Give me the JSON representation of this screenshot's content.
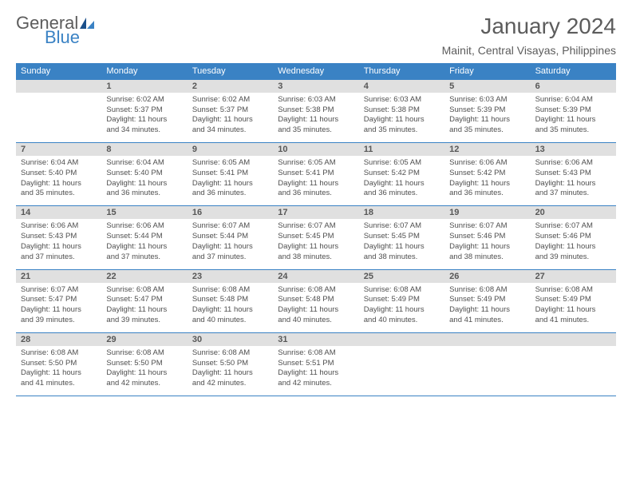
{
  "logo": {
    "word1": "General",
    "word2": "Blue"
  },
  "title": "January 2024",
  "location": "Mainit, Central Visayas, Philippines",
  "day_names": [
    "Sunday",
    "Monday",
    "Tuesday",
    "Wednesday",
    "Thursday",
    "Friday",
    "Saturday"
  ],
  "colors": {
    "accent": "#3a82c4",
    "date_bg": "#e0e0e0",
    "text_dark": "#5c5c5c",
    "cell_text": "#4f4f4f",
    "header_text": "#ffffff",
    "background": "#ffffff"
  },
  "typography": {
    "title_fontsize": 28,
    "location_fontsize": 14,
    "dayheader_fontsize": 11,
    "daynum_fontsize": 11,
    "cell_fontsize": 9.5,
    "font_family": "Arial"
  },
  "layout": {
    "columns": 7,
    "rows": 5,
    "start_weekday_index": 1
  },
  "weeks": [
    [
      {
        "day": "",
        "sunrise": "",
        "sunset": "",
        "daylight1": "",
        "daylight2": ""
      },
      {
        "day": "1",
        "sunrise": "Sunrise: 6:02 AM",
        "sunset": "Sunset: 5:37 PM",
        "daylight1": "Daylight: 11 hours",
        "daylight2": "and 34 minutes."
      },
      {
        "day": "2",
        "sunrise": "Sunrise: 6:02 AM",
        "sunset": "Sunset: 5:37 PM",
        "daylight1": "Daylight: 11 hours",
        "daylight2": "and 34 minutes."
      },
      {
        "day": "3",
        "sunrise": "Sunrise: 6:03 AM",
        "sunset": "Sunset: 5:38 PM",
        "daylight1": "Daylight: 11 hours",
        "daylight2": "and 35 minutes."
      },
      {
        "day": "4",
        "sunrise": "Sunrise: 6:03 AM",
        "sunset": "Sunset: 5:38 PM",
        "daylight1": "Daylight: 11 hours",
        "daylight2": "and 35 minutes."
      },
      {
        "day": "5",
        "sunrise": "Sunrise: 6:03 AM",
        "sunset": "Sunset: 5:39 PM",
        "daylight1": "Daylight: 11 hours",
        "daylight2": "and 35 minutes."
      },
      {
        "day": "6",
        "sunrise": "Sunrise: 6:04 AM",
        "sunset": "Sunset: 5:39 PM",
        "daylight1": "Daylight: 11 hours",
        "daylight2": "and 35 minutes."
      }
    ],
    [
      {
        "day": "7",
        "sunrise": "Sunrise: 6:04 AM",
        "sunset": "Sunset: 5:40 PM",
        "daylight1": "Daylight: 11 hours",
        "daylight2": "and 35 minutes."
      },
      {
        "day": "8",
        "sunrise": "Sunrise: 6:04 AM",
        "sunset": "Sunset: 5:40 PM",
        "daylight1": "Daylight: 11 hours",
        "daylight2": "and 36 minutes."
      },
      {
        "day": "9",
        "sunrise": "Sunrise: 6:05 AM",
        "sunset": "Sunset: 5:41 PM",
        "daylight1": "Daylight: 11 hours",
        "daylight2": "and 36 minutes."
      },
      {
        "day": "10",
        "sunrise": "Sunrise: 6:05 AM",
        "sunset": "Sunset: 5:41 PM",
        "daylight1": "Daylight: 11 hours",
        "daylight2": "and 36 minutes."
      },
      {
        "day": "11",
        "sunrise": "Sunrise: 6:05 AM",
        "sunset": "Sunset: 5:42 PM",
        "daylight1": "Daylight: 11 hours",
        "daylight2": "and 36 minutes."
      },
      {
        "day": "12",
        "sunrise": "Sunrise: 6:06 AM",
        "sunset": "Sunset: 5:42 PM",
        "daylight1": "Daylight: 11 hours",
        "daylight2": "and 36 minutes."
      },
      {
        "day": "13",
        "sunrise": "Sunrise: 6:06 AM",
        "sunset": "Sunset: 5:43 PM",
        "daylight1": "Daylight: 11 hours",
        "daylight2": "and 37 minutes."
      }
    ],
    [
      {
        "day": "14",
        "sunrise": "Sunrise: 6:06 AM",
        "sunset": "Sunset: 5:43 PM",
        "daylight1": "Daylight: 11 hours",
        "daylight2": "and 37 minutes."
      },
      {
        "day": "15",
        "sunrise": "Sunrise: 6:06 AM",
        "sunset": "Sunset: 5:44 PM",
        "daylight1": "Daylight: 11 hours",
        "daylight2": "and 37 minutes."
      },
      {
        "day": "16",
        "sunrise": "Sunrise: 6:07 AM",
        "sunset": "Sunset: 5:44 PM",
        "daylight1": "Daylight: 11 hours",
        "daylight2": "and 37 minutes."
      },
      {
        "day": "17",
        "sunrise": "Sunrise: 6:07 AM",
        "sunset": "Sunset: 5:45 PM",
        "daylight1": "Daylight: 11 hours",
        "daylight2": "and 38 minutes."
      },
      {
        "day": "18",
        "sunrise": "Sunrise: 6:07 AM",
        "sunset": "Sunset: 5:45 PM",
        "daylight1": "Daylight: 11 hours",
        "daylight2": "and 38 minutes."
      },
      {
        "day": "19",
        "sunrise": "Sunrise: 6:07 AM",
        "sunset": "Sunset: 5:46 PM",
        "daylight1": "Daylight: 11 hours",
        "daylight2": "and 38 minutes."
      },
      {
        "day": "20",
        "sunrise": "Sunrise: 6:07 AM",
        "sunset": "Sunset: 5:46 PM",
        "daylight1": "Daylight: 11 hours",
        "daylight2": "and 39 minutes."
      }
    ],
    [
      {
        "day": "21",
        "sunrise": "Sunrise: 6:07 AM",
        "sunset": "Sunset: 5:47 PM",
        "daylight1": "Daylight: 11 hours",
        "daylight2": "and 39 minutes."
      },
      {
        "day": "22",
        "sunrise": "Sunrise: 6:08 AM",
        "sunset": "Sunset: 5:47 PM",
        "daylight1": "Daylight: 11 hours",
        "daylight2": "and 39 minutes."
      },
      {
        "day": "23",
        "sunrise": "Sunrise: 6:08 AM",
        "sunset": "Sunset: 5:48 PM",
        "daylight1": "Daylight: 11 hours",
        "daylight2": "and 40 minutes."
      },
      {
        "day": "24",
        "sunrise": "Sunrise: 6:08 AM",
        "sunset": "Sunset: 5:48 PM",
        "daylight1": "Daylight: 11 hours",
        "daylight2": "and 40 minutes."
      },
      {
        "day": "25",
        "sunrise": "Sunrise: 6:08 AM",
        "sunset": "Sunset: 5:49 PM",
        "daylight1": "Daylight: 11 hours",
        "daylight2": "and 40 minutes."
      },
      {
        "day": "26",
        "sunrise": "Sunrise: 6:08 AM",
        "sunset": "Sunset: 5:49 PM",
        "daylight1": "Daylight: 11 hours",
        "daylight2": "and 41 minutes."
      },
      {
        "day": "27",
        "sunrise": "Sunrise: 6:08 AM",
        "sunset": "Sunset: 5:49 PM",
        "daylight1": "Daylight: 11 hours",
        "daylight2": "and 41 minutes."
      }
    ],
    [
      {
        "day": "28",
        "sunrise": "Sunrise: 6:08 AM",
        "sunset": "Sunset: 5:50 PM",
        "daylight1": "Daylight: 11 hours",
        "daylight2": "and 41 minutes."
      },
      {
        "day": "29",
        "sunrise": "Sunrise: 6:08 AM",
        "sunset": "Sunset: 5:50 PM",
        "daylight1": "Daylight: 11 hours",
        "daylight2": "and 42 minutes."
      },
      {
        "day": "30",
        "sunrise": "Sunrise: 6:08 AM",
        "sunset": "Sunset: 5:50 PM",
        "daylight1": "Daylight: 11 hours",
        "daylight2": "and 42 minutes."
      },
      {
        "day": "31",
        "sunrise": "Sunrise: 6:08 AM",
        "sunset": "Sunset: 5:51 PM",
        "daylight1": "Daylight: 11 hours",
        "daylight2": "and 42 minutes."
      },
      {
        "day": "",
        "sunrise": "",
        "sunset": "",
        "daylight1": "",
        "daylight2": ""
      },
      {
        "day": "",
        "sunrise": "",
        "sunset": "",
        "daylight1": "",
        "daylight2": ""
      },
      {
        "day": "",
        "sunrise": "",
        "sunset": "",
        "daylight1": "",
        "daylight2": ""
      }
    ]
  ]
}
